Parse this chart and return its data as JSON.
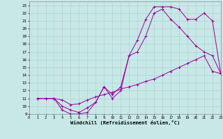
{
  "xlabel": "Windchill (Refroidissement éolien,°C)",
  "bg_color": "#c8e8e8",
  "grid_color": "#aacccc",
  "line_color": "#990099",
  "xlim": [
    0,
    23
  ],
  "ylim": [
    9,
    23.5
  ],
  "xticks": [
    0,
    1,
    2,
    3,
    4,
    5,
    6,
    7,
    8,
    9,
    10,
    11,
    12,
    13,
    14,
    15,
    16,
    17,
    18,
    19,
    20,
    21,
    22,
    23
  ],
  "yticks": [
    9,
    10,
    11,
    12,
    13,
    14,
    15,
    16,
    17,
    18,
    19,
    20,
    21,
    22,
    23
  ],
  "curve1_x": [
    1,
    2,
    3,
    4,
    5,
    6,
    7,
    8,
    9,
    10,
    11,
    12,
    13,
    14,
    15,
    16,
    17,
    18,
    19,
    20,
    21,
    22,
    23
  ],
  "curve1_y": [
    11,
    11,
    11,
    9.5,
    9,
    9,
    9.2,
    10.5,
    12.5,
    11,
    12,
    16.5,
    18.5,
    21.2,
    22.8,
    22.8,
    22.8,
    22.5,
    21.2,
    21.2,
    22,
    21,
    14.2
  ],
  "curve2_x": [
    1,
    2,
    3,
    4,
    5,
    6,
    7,
    8,
    9,
    10,
    11,
    12,
    13,
    14,
    15,
    16,
    17,
    18,
    19,
    20,
    21,
    22,
    23
  ],
  "curve2_y": [
    11,
    11,
    11,
    10.0,
    9.5,
    9.2,
    9.8,
    10.5,
    12.5,
    11.5,
    12.5,
    16.5,
    17.0,
    19.0,
    22.0,
    22.5,
    21.2,
    20.2,
    19.0,
    17.8,
    17.0,
    16.5,
    14.2
  ],
  "curve3_x": [
    1,
    2,
    3,
    4,
    5,
    6,
    7,
    8,
    9,
    10,
    11,
    12,
    13,
    14,
    15,
    16,
    17,
    18,
    19,
    20,
    21,
    22,
    23
  ],
  "curve3_y": [
    11,
    11,
    11,
    10.8,
    10.2,
    10.3,
    10.8,
    11.2,
    11.5,
    11.8,
    12.2,
    12.5,
    12.8,
    13.2,
    13.5,
    14.0,
    14.5,
    15.0,
    15.5,
    16.0,
    16.5,
    14.5,
    14.2
  ]
}
